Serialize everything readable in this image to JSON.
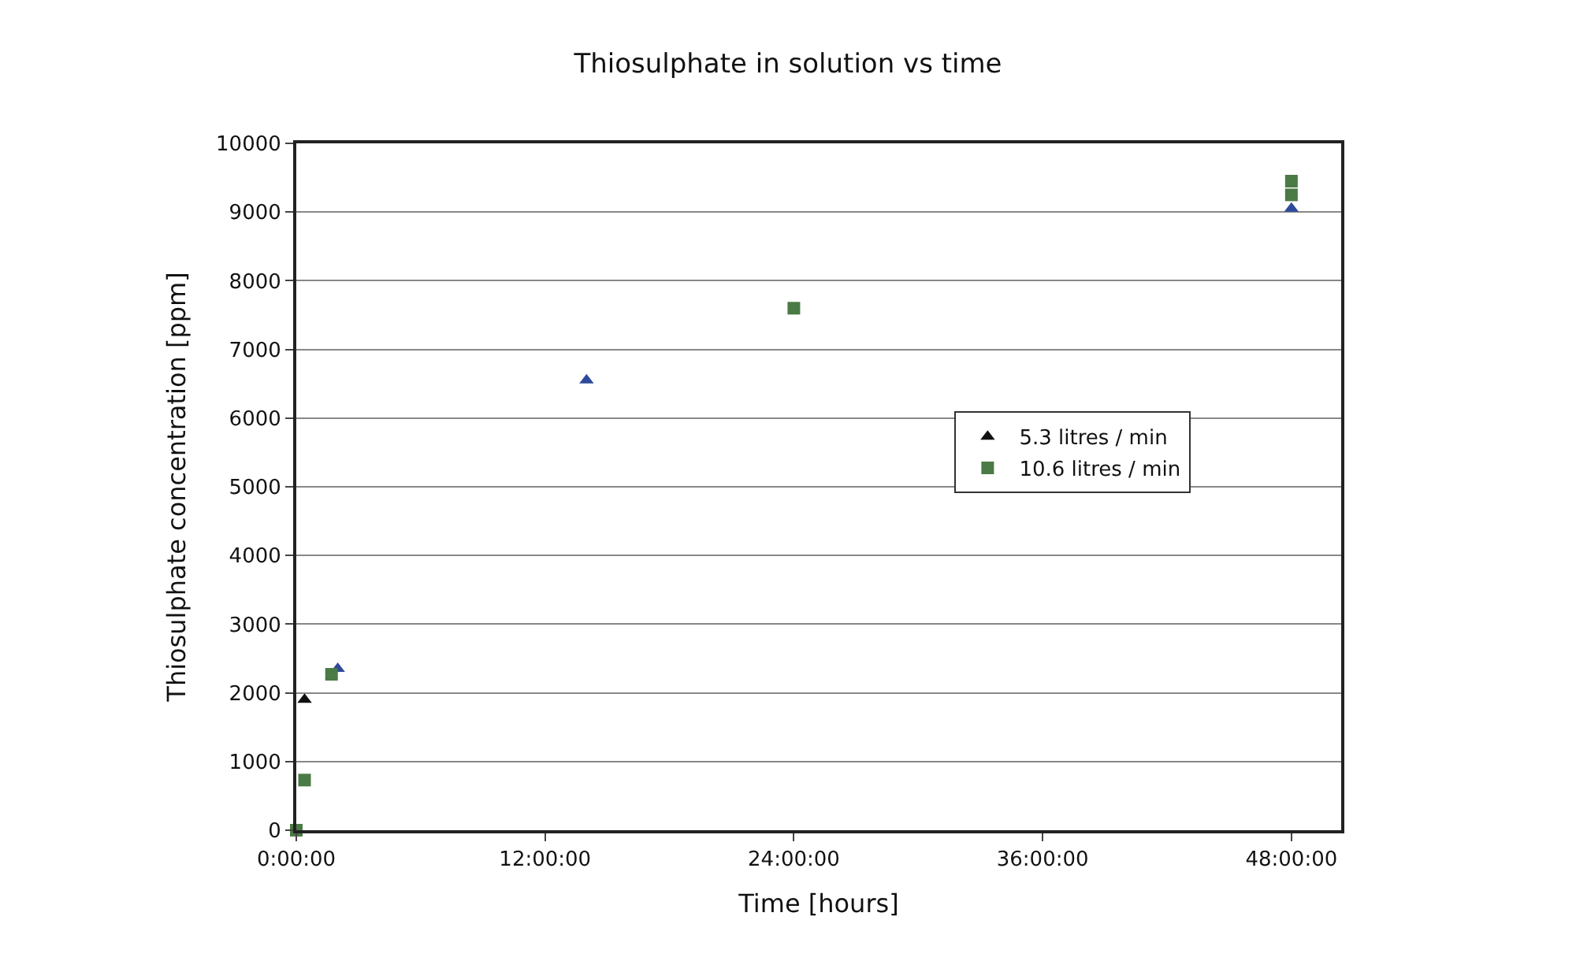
{
  "chart_data": {
    "type": "scatter",
    "title": "Thiosulphate in solution vs time",
    "xlabel": "Time [hours]",
    "ylabel": "Thiosulphate concentration [ppm]",
    "xlim": [
      0,
      50.4
    ],
    "xticks": [
      {
        "value": 0,
        "label": "0:00:00"
      },
      {
        "value": 12,
        "label": "12:00:00"
      },
      {
        "value": 24,
        "label": "24:00:00"
      },
      {
        "value": 36,
        "label": "36:00:00"
      },
      {
        "value": 48,
        "label": "48:00:00"
      }
    ],
    "ylim": [
      0,
      10000
    ],
    "yticks": [
      0,
      1000,
      2000,
      3000,
      4000,
      5000,
      6000,
      7000,
      8000,
      9000,
      10000
    ],
    "grid": "y",
    "legend": "right",
    "series": [
      {
        "name": "5.3 litres / min",
        "color": "#2e4a9a",
        "colors": [
          "#111111",
          "#2e4a9a",
          "#2e4a9a",
          "#2e4a9a"
        ],
        "marker": "triangle",
        "x": [
          0.4,
          2.0,
          14,
          48
        ],
        "values": [
          1900,
          2350,
          6550,
          9050
        ]
      },
      {
        "name": "10.6 litres / min",
        "color": "#4a7a45",
        "marker": "square",
        "x": [
          0,
          0.4,
          1.7,
          24,
          48,
          48
        ],
        "values": [
          0,
          730,
          2270,
          7600,
          9250,
          9450
        ]
      }
    ]
  }
}
